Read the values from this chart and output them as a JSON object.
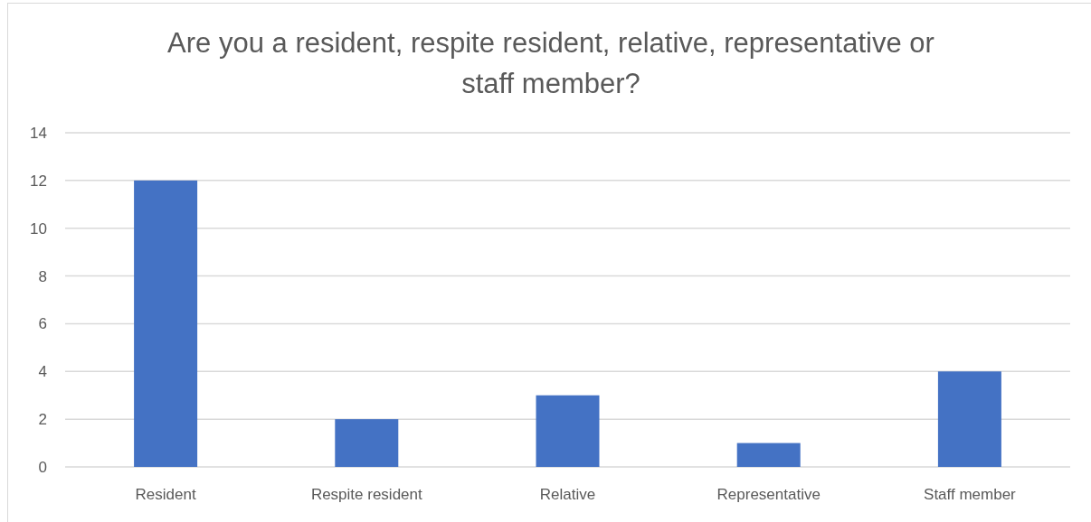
{
  "chart_data": {
    "type": "bar",
    "title": "Are you a resident, respite resident, relative, representative or staff member?",
    "categories": [
      "Resident",
      "Respite resident",
      "Relative",
      "Representative",
      "Staff member"
    ],
    "values": [
      12,
      2,
      3,
      1,
      4
    ],
    "color": "#4472c4",
    "ylim": [
      0,
      14
    ],
    "yticks": [
      0,
      2,
      4,
      6,
      8,
      10,
      12,
      14
    ],
    "grid": "y"
  }
}
